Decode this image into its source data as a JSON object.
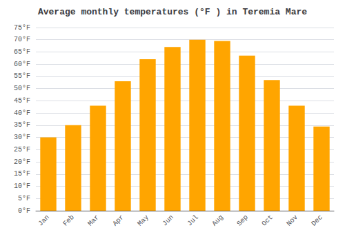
{
  "chart_data": {
    "type": "bar",
    "title": "Average monthly temperatures (°F ) in Teremia Mare",
    "categories": [
      "Jan",
      "Feb",
      "Mar",
      "Apr",
      "May",
      "Jun",
      "Jul",
      "Aug",
      "Sep",
      "Oct",
      "Nov",
      "Dec"
    ],
    "values": [
      30,
      35,
      43,
      53,
      62,
      67,
      70,
      69.5,
      63.5,
      53.5,
      43,
      34.5
    ],
    "color": "#FFA500",
    "ylim": [
      0,
      75
    ],
    "yticks": [
      {
        "value": 0,
        "label": "0°F"
      },
      {
        "value": 5,
        "label": "5°F"
      },
      {
        "value": 10,
        "label": "10°F"
      },
      {
        "value": 15,
        "label": "15°F"
      },
      {
        "value": 20,
        "label": "20°F"
      },
      {
        "value": 25,
        "label": "25°F"
      },
      {
        "value": 30,
        "label": "30°F"
      },
      {
        "value": 35,
        "label": "35°F"
      },
      {
        "value": 40,
        "label": "40°F"
      },
      {
        "value": 45,
        "label": "45°F"
      },
      {
        "value": 50,
        "label": "50°F"
      },
      {
        "value": 55,
        "label": "55°F"
      },
      {
        "value": 60,
        "label": "60°F"
      },
      {
        "value": 65,
        "label": "65°F"
      },
      {
        "value": 70,
        "label": "70°F"
      },
      {
        "value": 75,
        "label": "75°F"
      }
    ],
    "grid": true
  }
}
